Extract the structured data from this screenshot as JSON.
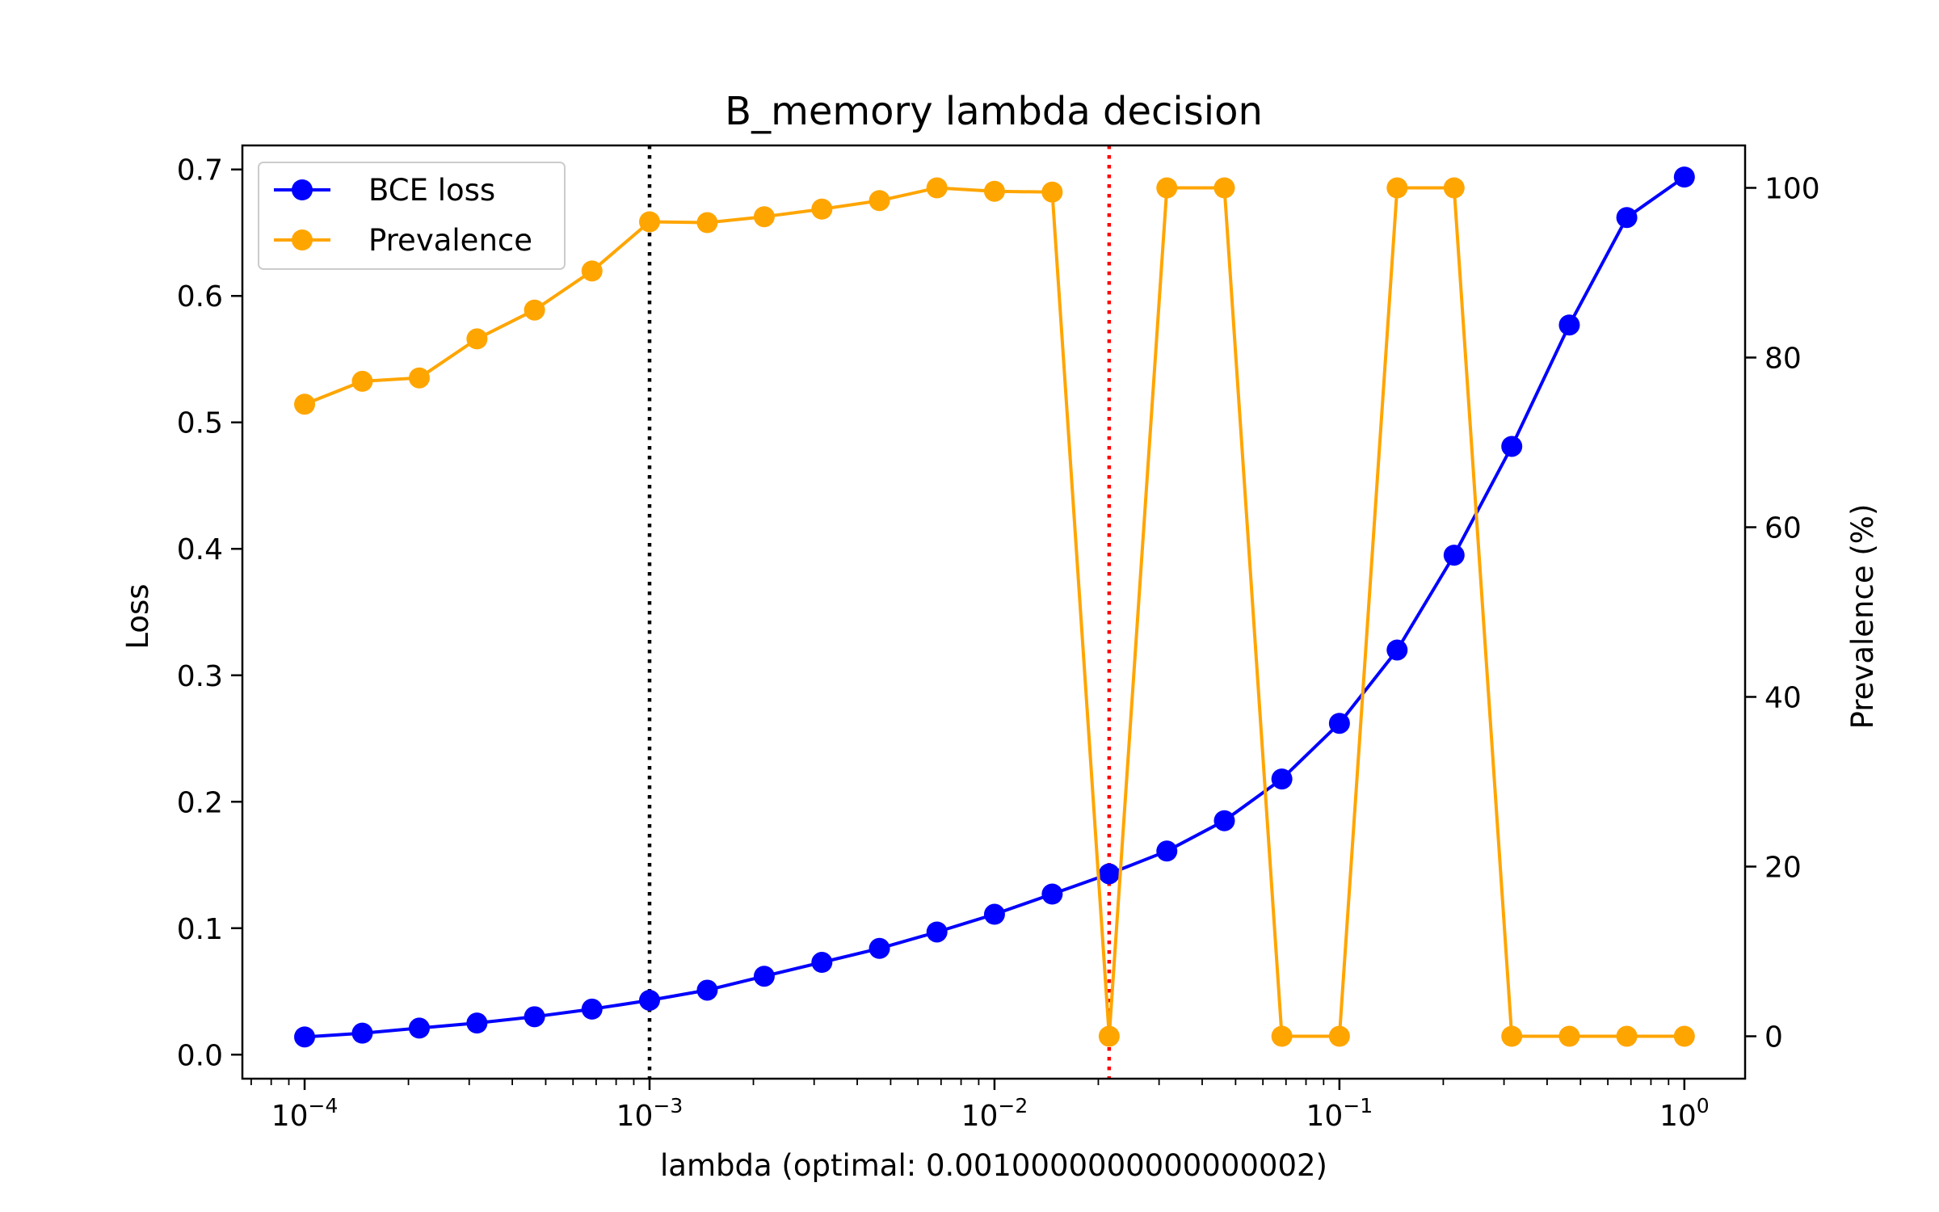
{
  "chart_data": {
    "type": "line",
    "title": "B_memory lambda decision",
    "xlabel": "lambda (optimal: 0.0010000000000000002)",
    "ylabel": "Loss",
    "y2label": "Prevalence (%)",
    "xscale": "log",
    "xlim": [
      6.6e-05,
      1.5
    ],
    "ylim": [
      -0.019,
      0.719
    ],
    "y2lim": [
      -5.0,
      105.0
    ],
    "x_ticks": [
      {
        "value": 0.0001,
        "base": "10",
        "exp": "−4"
      },
      {
        "value": 0.001,
        "base": "10",
        "exp": "−3"
      },
      {
        "value": 0.01,
        "base": "10",
        "exp": "−2"
      },
      {
        "value": 0.1,
        "base": "10",
        "exp": "−1"
      },
      {
        "value": 1,
        "base": "10",
        "exp": "0"
      }
    ],
    "y_ticks": [
      "0.0",
      "0.1",
      "0.2",
      "0.3",
      "0.4",
      "0.5",
      "0.6",
      "0.7"
    ],
    "y2_ticks": [
      "0",
      "20",
      "40",
      "60",
      "80",
      "100"
    ],
    "x": [
      0.0001,
      0.000147,
      0.000215,
      0.000316,
      0.000464,
      0.000681,
      0.001,
      0.00147,
      0.00215,
      0.00316,
      0.00464,
      0.00681,
      0.01,
      0.0147,
      0.0215,
      0.0316,
      0.0464,
      0.0681,
      0.1,
      0.147,
      0.215,
      0.316,
      0.464,
      0.681,
      1.0
    ],
    "series": [
      {
        "name": "BCE loss",
        "axis": "left",
        "color": "#0000ff",
        "values": [
          0.014,
          0.017,
          0.021,
          0.025,
          0.03,
          0.036,
          0.043,
          0.051,
          0.062,
          0.073,
          0.084,
          0.097,
          0.111,
          0.127,
          0.143,
          0.161,
          0.185,
          0.218,
          0.262,
          0.32,
          0.395,
          0.481,
          0.577,
          0.662,
          0.694
        ]
      },
      {
        "name": "Prevalence",
        "axis": "right",
        "color": "#ffa500",
        "values": [
          74.5,
          77.2,
          77.6,
          82.2,
          85.6,
          90.2,
          96.0,
          95.9,
          96.6,
          97.5,
          98.5,
          100.0,
          99.6,
          99.5,
          0.0,
          100.0,
          100.0,
          0.0,
          0.0,
          100.0,
          100.0,
          0.0,
          0.0,
          0.0,
          0.0
        ]
      }
    ],
    "vlines": [
      {
        "x": 0.001,
        "color": "#000000",
        "style": "dotted"
      },
      {
        "x": 0.0215,
        "color": "#ff0000",
        "style": "dotted"
      }
    ],
    "legend": {
      "position": "top-left"
    },
    "grid": false
  }
}
